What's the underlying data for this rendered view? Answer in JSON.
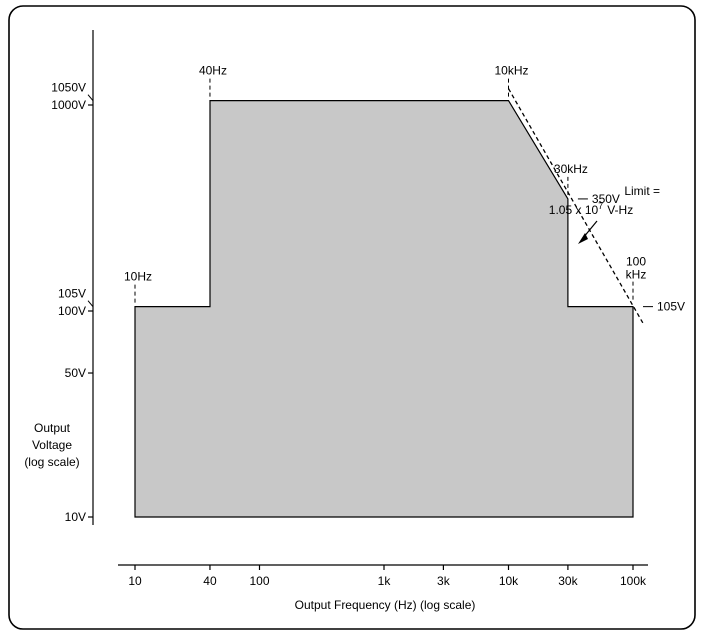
{
  "chart_data": {
    "type": "area",
    "xlabel": "Output Frequency (Hz) (log scale)",
    "ylabel_lines": [
      "Output",
      "Voltage",
      "(log scale)"
    ],
    "x_scale": "log",
    "y_scale": "log",
    "x_ticks": [
      {
        "value": 10,
        "label": "10"
      },
      {
        "value": 40,
        "label": "40"
      },
      {
        "value": 100,
        "label": "100"
      },
      {
        "value": 1000,
        "label": "1k"
      },
      {
        "value": 3000,
        "label": "3k"
      },
      {
        "value": 10000,
        "label": "10k"
      },
      {
        "value": 30000,
        "label": "30k"
      },
      {
        "value": 100000,
        "label": "100k"
      }
    ],
    "y_ticks": [
      {
        "value": 10,
        "label": "10V"
      },
      {
        "value": 50,
        "label": "50V"
      },
      {
        "value": 100,
        "label": "100V"
      },
      {
        "value": 1000,
        "label": "1000V"
      }
    ],
    "y_side_labels": [
      {
        "value": 105,
        "label": "105V"
      },
      {
        "value": 1050,
        "label": "1050V"
      }
    ],
    "region": {
      "name": "",
      "color": "#c8c8c8",
      "points": [
        {
          "x": 10,
          "y": 10
        },
        {
          "x": 10,
          "y": 105
        },
        {
          "x": 40,
          "y": 105
        },
        {
          "x": 40,
          "y": 1050
        },
        {
          "x": 10000,
          "y": 1050
        },
        {
          "x": 30000,
          "y": 350
        },
        {
          "x": 30000,
          "y": 105
        },
        {
          "x": 100000,
          "y": 105
        },
        {
          "x": 100000,
          "y": 10
        }
      ]
    },
    "limit_line": {
      "from": {
        "x": 10000,
        "y": 1050
      },
      "to": {
        "x": 120000,
        "y": 87.5
      },
      "label_lines": [
        "Limit =",
        "1.05 x 10",
        "7",
        "V-Hz"
      ]
    },
    "annotations": [
      {
        "label": "10Hz",
        "x": 10,
        "y": 105,
        "kind": "freq"
      },
      {
        "label": "40Hz",
        "x": 40,
        "y": 1050,
        "kind": "freq"
      },
      {
        "label": "10kHz",
        "x": 10000,
        "y": 1050,
        "kind": "freq"
      },
      {
        "label": "30kHz",
        "x": 30000,
        "y": 350,
        "kind": "freq"
      },
      {
        "label": "100",
        "label2": "kHz",
        "x": 100000,
        "y": 105,
        "kind": "freq"
      },
      {
        "label": "350V",
        "x": 30000,
        "y": 350,
        "kind": "volt"
      },
      {
        "label": "105V",
        "x": 100000,
        "y": 105,
        "kind": "volt"
      }
    ]
  }
}
